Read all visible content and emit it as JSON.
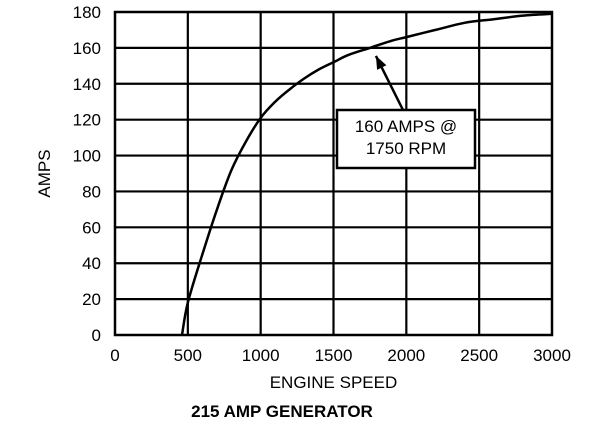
{
  "chart_data": {
    "type": "line",
    "title": "215 AMP GENERATOR",
    "xlabel": "ENGINE SPEED",
    "ylabel": "AMPS",
    "xlim": [
      0,
      3000
    ],
    "ylim": [
      0,
      180
    ],
    "xticks": [
      0,
      500,
      1000,
      1500,
      2000,
      2500,
      3000
    ],
    "yticks": [
      0,
      20,
      40,
      60,
      80,
      100,
      120,
      140,
      160,
      180
    ],
    "x_tick_labels": [
      "0",
      "500",
      "1000",
      "1500",
      "2000",
      "2500",
      "3000"
    ],
    "y_tick_labels": [
      "0",
      "20",
      "40",
      "60",
      "80",
      "100",
      "120",
      "140",
      "160",
      "180"
    ],
    "grid": true,
    "series": [
      {
        "x": [
          460,
          500,
          600,
          700,
          800,
          900,
          1000,
          1100,
          1200,
          1300,
          1400,
          1500,
          1600,
          1750,
          1900,
          2000,
          2200,
          2400,
          2600,
          2800,
          3000
        ],
        "y": [
          0,
          18,
          45,
          70,
          92,
          108,
          121,
          130,
          137,
          143,
          148,
          152,
          156,
          160,
          164,
          166,
          170,
          174,
          176,
          178,
          179
        ]
      }
    ],
    "annotations": [
      {
        "lines": [
          "160 AMPS @",
          "1750 RPM"
        ],
        "x": 1750,
        "y": 160
      }
    ]
  }
}
